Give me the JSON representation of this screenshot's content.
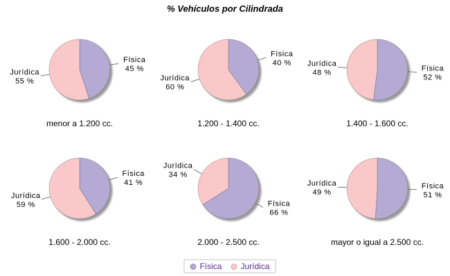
{
  "title": "% Vehículos por Cilindrada",
  "palette": {
    "fisica": "#b5aad4",
    "juridica": "#fac8c8",
    "shadow": "#9b9b9b",
    "leader_line": "#787878",
    "label_text": "#000000",
    "legend_text": "#5a2d8f",
    "legend_border": "#c8c8c8"
  },
  "legend": {
    "position": "bottom-center",
    "items": [
      {
        "label": "Física",
        "color": "#b5aad4"
      },
      {
        "label": "Jurídica",
        "color": "#fac8c8"
      }
    ]
  },
  "chart_data": {
    "type": "pie",
    "title": "% Vehículos por Cilindrada",
    "series_labels": [
      "Física",
      "Jurídica"
    ],
    "start_angle": "12 o'clock, clockwise, Física first",
    "legend_position": "bottom-center",
    "charts": [
      {
        "type": "pie",
        "title": "menor a 1.200 cc.",
        "labels": [
          "Física",
          "Jurídica"
        ],
        "values": [
          45,
          55
        ],
        "value_labels": [
          "45 %",
          "55 %"
        ]
      },
      {
        "type": "pie",
        "title": "1.200 - 1.400 cc.",
        "labels": [
          "Física",
          "Jurídica"
        ],
        "values": [
          40,
          60
        ],
        "value_labels": [
          "40 %",
          "60 %"
        ]
      },
      {
        "type": "pie",
        "title": "1.400 - 1.600 cc.",
        "labels": [
          "Física",
          "Jurídica"
        ],
        "values": [
          52,
          48
        ],
        "value_labels": [
          "52 %",
          "48 %"
        ]
      },
      {
        "type": "pie",
        "title": "1.600 - 2.000 cc.",
        "labels": [
          "Física",
          "Jurídica"
        ],
        "values": [
          41,
          59
        ],
        "value_labels": [
          "41 %",
          "59 %"
        ]
      },
      {
        "type": "pie",
        "title": "2.000 - 2.500 cc.",
        "labels": [
          "Física",
          "Jurídica"
        ],
        "values": [
          66,
          34
        ],
        "value_labels": [
          "66 %",
          "34 %"
        ]
      },
      {
        "type": "pie",
        "title": "mayor o igual a 2.500 cc.",
        "labels": [
          "Física",
          "Jurídica"
        ],
        "values": [
          51,
          49
        ],
        "value_labels": [
          "51 %",
          "49 %"
        ]
      }
    ]
  }
}
